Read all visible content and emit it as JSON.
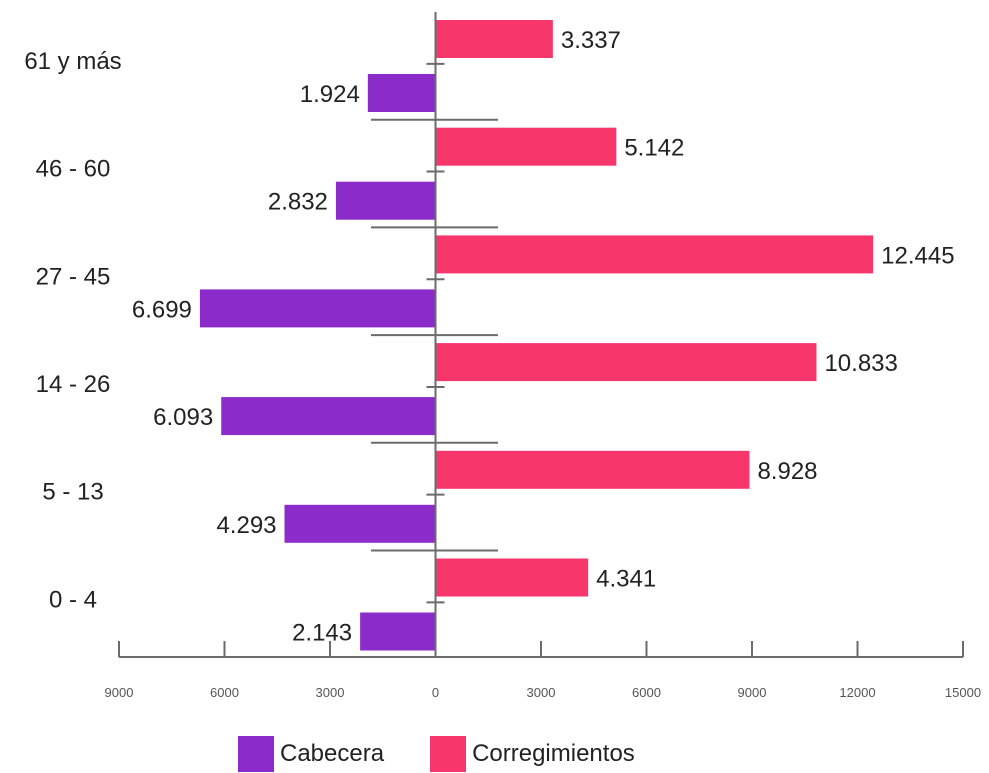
{
  "chart_data": {
    "type": "bar",
    "orientation": "horizontal",
    "categories": [
      "61 y más",
      "46 - 60",
      "27 - 45",
      "14 - 26",
      "5 - 13",
      "0 - 4"
    ],
    "category_labels": [
      "61 y más",
      "46 - 60",
      "27 - 45",
      "14 - 26",
      "5 - 13",
      "0 - 4"
    ],
    "series": [
      {
        "name": "Corregimientos",
        "color": "#f7366b",
        "values": [
          3337,
          5142,
          12445,
          10833,
          8928,
          4341
        ],
        "labels": [
          "3.337",
          "5.142",
          "12.445",
          "10.833",
          "8.928",
          "4.341"
        ]
      },
      {
        "name": "Cabecera",
        "color": "#8b2bc9",
        "values": [
          -1924,
          -2832,
          -6699,
          -6093,
          -4293,
          -2143
        ],
        "labels": [
          "1.924",
          "2.832",
          "6.699",
          "6.093",
          "4.293",
          "2.143"
        ]
      }
    ],
    "xlim": [
      -9000,
      15000
    ],
    "xticks": [
      -9000,
      -6000,
      -3000,
      0,
      3000,
      6000,
      9000,
      12000,
      15000
    ],
    "xtick_labels": [
      "9000",
      "6000",
      "3000",
      "0",
      "3000",
      "6000",
      "9000",
      "12000",
      "15000"
    ],
    "legend_position": "bottom",
    "grid": false
  },
  "legend": {
    "items": [
      {
        "label": "Cabecera",
        "color": "#8b2bc9"
      },
      {
        "label": "Corregimientos",
        "color": "#f7366b"
      }
    ]
  }
}
